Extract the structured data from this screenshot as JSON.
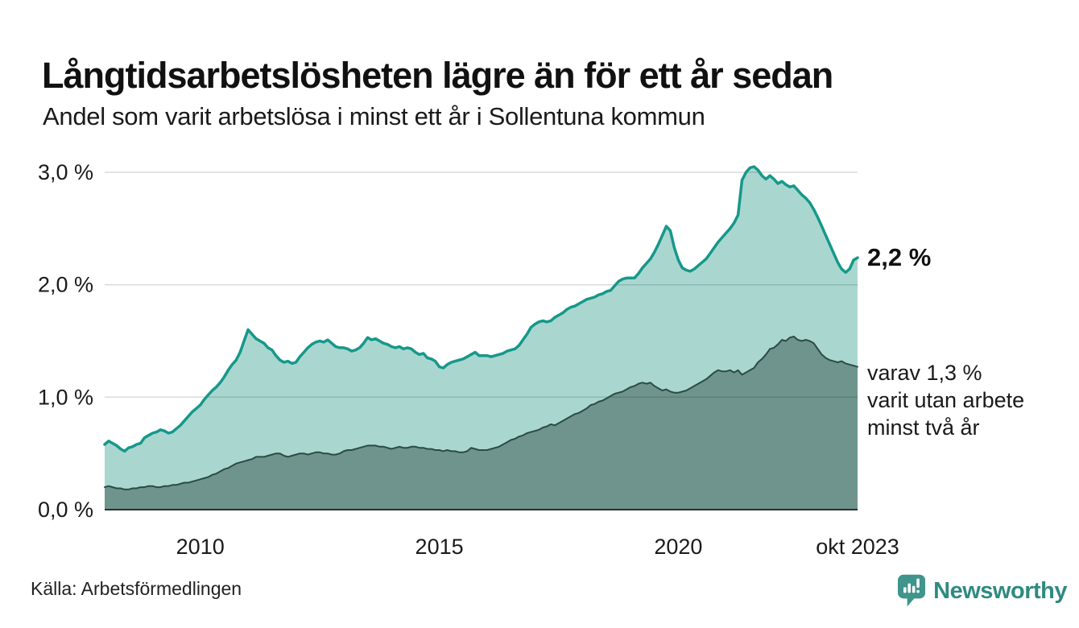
{
  "header": {
    "title": "Långtidsarbetslösheten lägre än för ett år sedan",
    "subtitle": "Andel som varit arbetslösa i minst ett år i Sollentuna kommun"
  },
  "chart_data": {
    "type": "area",
    "title": "Långtidsarbetslösheten lägre än för ett år sedan",
    "subtitle": "Andel som varit arbetslösa i minst ett år i Sollentuna kommun",
    "x_start": "2008-01",
    "x_end": "2023-10",
    "frequency": "monthly",
    "ylim": [
      0,
      3.2
    ],
    "y_ticks": [
      0,
      1,
      2,
      3
    ],
    "y_tick_labels": [
      "0,0 %",
      "1,0 %",
      "2,0 %",
      "3,0 %"
    ],
    "x_ticks": [
      {
        "label": "2010",
        "month": 24
      },
      {
        "label": "2015",
        "month": 84
      },
      {
        "label": "2020",
        "month": 144
      },
      {
        "label": "okt 2023",
        "month": 189
      }
    ],
    "grid": true,
    "legend": "none",
    "series": [
      {
        "name": "arbetslösa minst ett år",
        "line_color": "#16988a",
        "fill_color": "#a9d7d0",
        "line_width": 3.5,
        "latest_label": "2,2 %",
        "values": [
          0.58,
          0.61,
          0.59,
          0.57,
          0.54,
          0.52,
          0.55,
          0.56,
          0.58,
          0.59,
          0.64,
          0.66,
          0.68,
          0.69,
          0.71,
          0.7,
          0.68,
          0.69,
          0.72,
          0.75,
          0.79,
          0.83,
          0.87,
          0.9,
          0.93,
          0.98,
          1.02,
          1.06,
          1.09,
          1.13,
          1.18,
          1.24,
          1.29,
          1.33,
          1.4,
          1.5,
          1.6,
          1.56,
          1.52,
          1.5,
          1.48,
          1.44,
          1.42,
          1.37,
          1.33,
          1.31,
          1.32,
          1.3,
          1.31,
          1.36,
          1.4,
          1.44,
          1.47,
          1.49,
          1.5,
          1.49,
          1.51,
          1.48,
          1.45,
          1.44,
          1.44,
          1.43,
          1.41,
          1.42,
          1.44,
          1.48,
          1.53,
          1.51,
          1.52,
          1.5,
          1.48,
          1.47,
          1.45,
          1.44,
          1.45,
          1.43,
          1.44,
          1.43,
          1.4,
          1.38,
          1.39,
          1.35,
          1.34,
          1.32,
          1.27,
          1.26,
          1.29,
          1.31,
          1.32,
          1.33,
          1.34,
          1.36,
          1.38,
          1.4,
          1.37,
          1.37,
          1.37,
          1.36,
          1.37,
          1.38,
          1.39,
          1.41,
          1.42,
          1.43,
          1.46,
          1.51,
          1.56,
          1.62,
          1.65,
          1.67,
          1.68,
          1.67,
          1.68,
          1.71,
          1.73,
          1.75,
          1.78,
          1.8,
          1.81,
          1.83,
          1.85,
          1.87,
          1.88,
          1.89,
          1.91,
          1.92,
          1.94,
          1.95,
          1.99,
          2.03,
          2.05,
          2.06,
          2.06,
          2.06,
          2.1,
          2.15,
          2.19,
          2.23,
          2.29,
          2.36,
          2.44,
          2.52,
          2.48,
          2.33,
          2.22,
          2.15,
          2.13,
          2.12,
          2.14,
          2.17,
          2.2,
          2.23,
          2.28,
          2.33,
          2.38,
          2.42,
          2.46,
          2.5,
          2.55,
          2.62,
          2.93,
          3.0,
          3.04,
          3.05,
          3.02,
          2.97,
          2.94,
          2.97,
          2.94,
          2.9,
          2.92,
          2.89,
          2.87,
          2.88,
          2.84,
          2.8,
          2.77,
          2.73,
          2.67,
          2.6,
          2.52,
          2.44,
          2.36,
          2.28,
          2.2,
          2.14,
          2.11,
          2.14,
          2.22,
          2.24
        ]
      },
      {
        "name": "varav utan arbete minst två år",
        "line_color": "#2c4b45",
        "fill_color": "#6f948d",
        "line_width": 2,
        "latest_label": "varav 1,3 % varit utan arbete minst två år",
        "values": [
          0.2,
          0.21,
          0.2,
          0.19,
          0.19,
          0.18,
          0.18,
          0.19,
          0.19,
          0.2,
          0.2,
          0.21,
          0.21,
          0.2,
          0.2,
          0.21,
          0.21,
          0.22,
          0.22,
          0.23,
          0.24,
          0.24,
          0.25,
          0.26,
          0.27,
          0.28,
          0.29,
          0.31,
          0.32,
          0.34,
          0.36,
          0.37,
          0.39,
          0.41,
          0.42,
          0.43,
          0.44,
          0.45,
          0.47,
          0.47,
          0.47,
          0.48,
          0.49,
          0.5,
          0.5,
          0.48,
          0.47,
          0.48,
          0.49,
          0.5,
          0.5,
          0.49,
          0.5,
          0.51,
          0.51,
          0.5,
          0.5,
          0.49,
          0.49,
          0.5,
          0.52,
          0.53,
          0.53,
          0.54,
          0.55,
          0.56,
          0.57,
          0.57,
          0.57,
          0.56,
          0.56,
          0.55,
          0.54,
          0.55,
          0.56,
          0.55,
          0.55,
          0.56,
          0.56,
          0.55,
          0.55,
          0.54,
          0.54,
          0.53,
          0.53,
          0.52,
          0.53,
          0.52,
          0.52,
          0.51,
          0.51,
          0.52,
          0.55,
          0.54,
          0.53,
          0.53,
          0.53,
          0.54,
          0.55,
          0.56,
          0.58,
          0.6,
          0.62,
          0.63,
          0.65,
          0.66,
          0.68,
          0.69,
          0.7,
          0.71,
          0.73,
          0.74,
          0.76,
          0.75,
          0.77,
          0.79,
          0.81,
          0.83,
          0.85,
          0.86,
          0.88,
          0.9,
          0.93,
          0.94,
          0.96,
          0.97,
          0.99,
          1.01,
          1.03,
          1.04,
          1.05,
          1.07,
          1.09,
          1.1,
          1.12,
          1.13,
          1.12,
          1.13,
          1.1,
          1.08,
          1.06,
          1.07,
          1.05,
          1.04,
          1.04,
          1.05,
          1.06,
          1.08,
          1.1,
          1.12,
          1.14,
          1.16,
          1.19,
          1.22,
          1.24,
          1.23,
          1.23,
          1.24,
          1.22,
          1.24,
          1.2,
          1.22,
          1.24,
          1.26,
          1.31,
          1.34,
          1.38,
          1.43,
          1.44,
          1.47,
          1.51,
          1.5,
          1.53,
          1.54,
          1.51,
          1.5,
          1.51,
          1.5,
          1.48,
          1.43,
          1.38,
          1.35,
          1.33,
          1.32,
          1.31,
          1.32,
          1.3,
          1.29,
          1.28,
          1.27
        ]
      }
    ],
    "annotations": [
      {
        "text": "2,2 %",
        "bold": true
      },
      {
        "lines": [
          "varav 1,3 %",
          "varit utan arbete",
          "minst två år"
        ]
      }
    ]
  },
  "footer": {
    "source": "Källa: Arbetsförmedlingen",
    "logo_text": "Newsworthy"
  },
  "colors": {
    "accent_teal": "#16988a",
    "fill_light": "#a9d7d0",
    "fill_dark": "#6f948d",
    "dark_line": "#2c4b45",
    "grid": "#d9d9d9",
    "axis": "#2d2d2d",
    "logo": "#3f948b",
    "logo_text": "#2f8a80"
  }
}
